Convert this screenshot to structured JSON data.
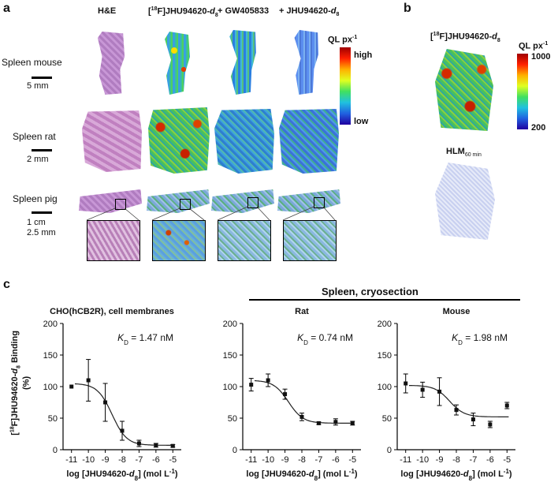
{
  "panel_a": {
    "letter": "a",
    "col_he": "H&E",
    "col_tracer": "[",
    "col_tracer_sup": "18",
    "col_tracer_rest": "F]JHU94620-",
    "col_tracer_d": "d",
    "col_tracer_sub": "8",
    "col_gw": "+ GW405833",
    "col_jhu": "+ JHU94620-",
    "col_jhu_d": "d",
    "col_jhu_sub": "8",
    "row_mouse": "Spleen mouse",
    "row_rat": "Spleen rat",
    "row_pig": "Spleen pig",
    "scale_mouse": "5 mm",
    "scale_rat": "2 mm",
    "scale_pig1": "1 cm",
    "scale_pig2": "2.5 mm",
    "colorbar_title": "QL px",
    "colorbar_sup": "-1",
    "colorbar_high": "high",
    "colorbar_low": "low"
  },
  "panel_b": {
    "letter": "b",
    "title_pre": "[",
    "title_sup": "18",
    "title_mid": "F]JHU94620-",
    "title_d": "d",
    "title_sub": "8",
    "colorbar_title": "QL px",
    "colorbar_sup": "-1",
    "colorbar_max": "1000",
    "colorbar_min": "200",
    "hlm_label": "HLM",
    "hlm_sub": "60 min"
  },
  "panel_c": {
    "letter": "c",
    "group_label": "Spleen, cryosection",
    "ylabel_line1_pre": "[",
    "ylabel_sup": "18",
    "ylabel_line1_rest": "F]JHU94620-",
    "ylabel_d": "d",
    "ylabel_sub": "8",
    "ylabel_line1_end": " Binding",
    "ylabel_line2": "(%)",
    "xlabel_pre": "log [JHU94620-",
    "xlabel_d": "d",
    "xlabel_sub": "8",
    "xlabel_post": "] (mol L",
    "xlabel_sup": "-1",
    "xlabel_close": ")"
  },
  "chart_data": [
    {
      "type": "scatter",
      "title": "CHO(hCB2R), cell membranes",
      "annotation": "K_D = 1.47 nM",
      "kd_label": "K",
      "kd_sub": "D",
      "kd_value": " = 1.47 nM",
      "xlim": [
        -11.5,
        -4.5
      ],
      "ylim": [
        0,
        200
      ],
      "xticks": [
        -11,
        -10,
        -9,
        -8,
        -7,
        -6,
        -5
      ],
      "yticks": [
        0,
        50,
        100,
        150,
        200
      ],
      "x": [
        -11,
        -10,
        -9,
        -8,
        -7,
        -6,
        -5
      ],
      "y": [
        100,
        110,
        75,
        30,
        10,
        7,
        6
      ],
      "err": [
        0,
        33,
        30,
        15,
        5,
        3,
        2
      ],
      "fit": {
        "top": 105,
        "bottom": 7,
        "logic50": -8.6,
        "hill": 1.0
      }
    },
    {
      "type": "scatter",
      "title": "Rat",
      "annotation": "K_D = 0.74 nM",
      "kd_label": "K",
      "kd_sub": "D",
      "kd_value": " = 0.74 nM",
      "xlim": [
        -11.5,
        -4.5
      ],
      "ylim": [
        0,
        200
      ],
      "xticks": [
        -11,
        -10,
        -9,
        -8,
        -7,
        -6,
        -5
      ],
      "yticks": [
        0,
        50,
        100,
        150,
        200
      ],
      "x": [
        -11,
        -10,
        -9,
        -8,
        -7,
        -6,
        -5
      ],
      "y": [
        103,
        110,
        88,
        52,
        42,
        44,
        42
      ],
      "err": [
        10,
        10,
        8,
        6,
        2,
        5,
        3
      ],
      "fit": {
        "top": 110,
        "bottom": 42,
        "logic50": -8.8,
        "hill": 1.0
      }
    },
    {
      "type": "scatter",
      "title": "Mouse",
      "annotation": "K_D = 1.98 nM",
      "kd_label": "K",
      "kd_sub": "D",
      "kd_value": " = 1.98 nM",
      "xlim": [
        -11.5,
        -4.5
      ],
      "ylim": [
        0,
        200
      ],
      "xticks": [
        -11,
        -10,
        -9,
        -8,
        -7,
        -6,
        -5
      ],
      "yticks": [
        0,
        50,
        100,
        150,
        200
      ],
      "x": [
        -11,
        -10,
        -9,
        -8,
        -7,
        -6,
        -5
      ],
      "y": [
        105,
        95,
        92,
        63,
        48,
        40,
        70
      ],
      "err": [
        15,
        12,
        22,
        8,
        10,
        5,
        5
      ],
      "fit": {
        "top": 102,
        "bottom": 52,
        "logic50": -8.4,
        "hill": 1.0
      }
    }
  ]
}
